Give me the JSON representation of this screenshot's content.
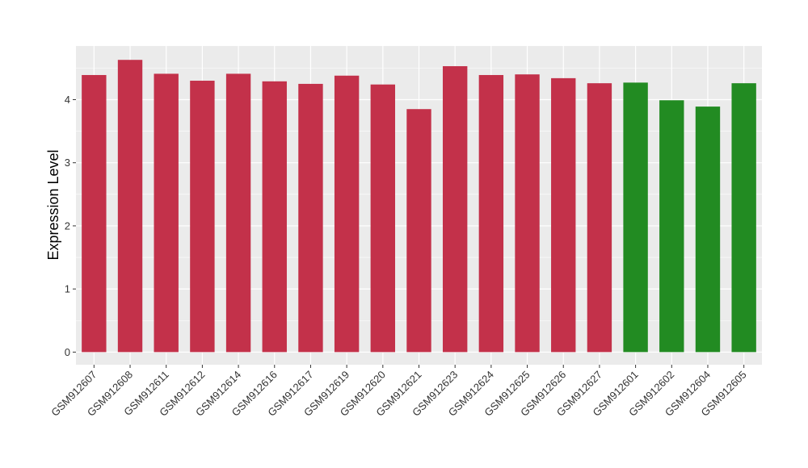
{
  "chart_data": {
    "type": "bar",
    "title": "",
    "xlabel": "",
    "ylabel": "Expression Level",
    "ylim": [
      -0.2,
      4.85
    ],
    "yticks": [
      0,
      1,
      2,
      3,
      4
    ],
    "grid": true,
    "legend": "none",
    "colors": {
      "group_a": "#c3314a",
      "group_b": "#228b22",
      "panel_bg": "#ebebeb",
      "grid": "#ffffff"
    },
    "categories": [
      "GSM912607",
      "GSM912608",
      "GSM912611",
      "GSM912612",
      "GSM912614",
      "GSM912616",
      "GSM912617",
      "GSM912619",
      "GSM912620",
      "GSM912621",
      "GSM912623",
      "GSM912624",
      "GSM912625",
      "GSM912626",
      "GSM912627",
      "GSM912601",
      "GSM912602",
      "GSM912604",
      "GSM912605"
    ],
    "values": [
      4.39,
      4.63,
      4.41,
      4.3,
      4.41,
      4.29,
      4.25,
      4.38,
      4.24,
      3.85,
      4.53,
      4.39,
      4.4,
      4.34,
      4.26,
      4.27,
      3.99,
      3.89,
      4.26
    ],
    "bar_groups": [
      "group_a",
      "group_a",
      "group_a",
      "group_a",
      "group_a",
      "group_a",
      "group_a",
      "group_a",
      "group_a",
      "group_a",
      "group_a",
      "group_a",
      "group_a",
      "group_a",
      "group_a",
      "group_b",
      "group_b",
      "group_b",
      "group_b"
    ]
  }
}
